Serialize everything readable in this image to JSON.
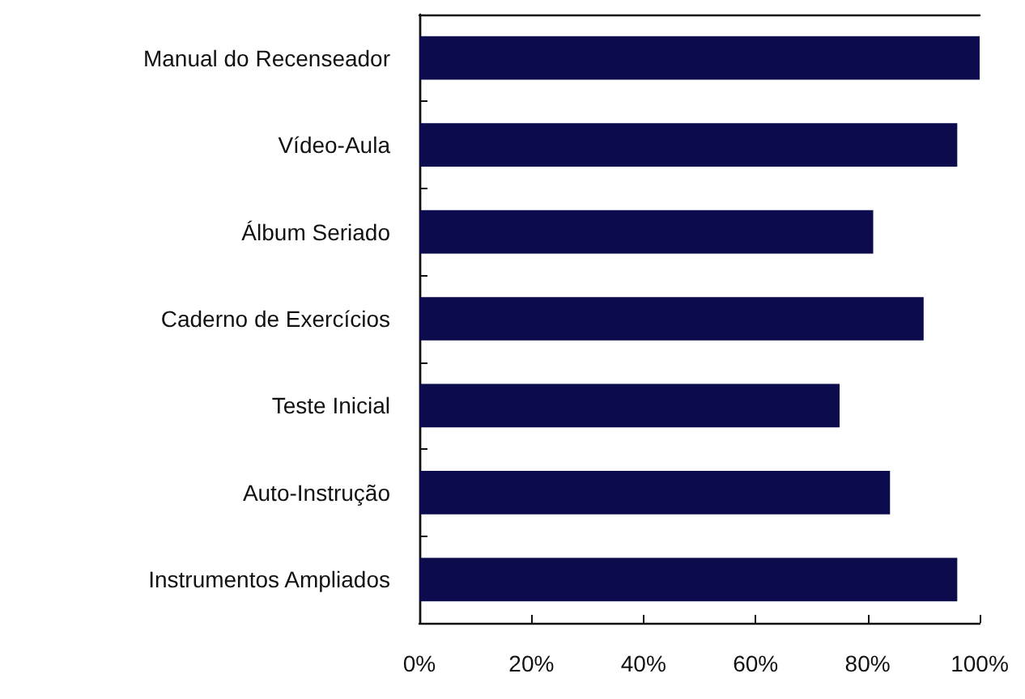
{
  "chart_data": {
    "type": "bar",
    "orientation": "horizontal",
    "categories": [
      "Manual do Recenseador",
      "Vídeo-Aula",
      "Álbum Seriado",
      "Caderno de Exercícios",
      "Teste Inicial",
      "Auto-Instrução",
      "Instrumentos Ampliados"
    ],
    "values": [
      100,
      96,
      81,
      90,
      75,
      84,
      96
    ],
    "color": "#0b0b4d",
    "xlim": [
      0,
      100
    ],
    "xticks": [
      {
        "value": 0,
        "label": "0%"
      },
      {
        "value": 20,
        "label": "20%"
      },
      {
        "value": 40,
        "label": "40%"
      },
      {
        "value": 60,
        "label": "60%"
      },
      {
        "value": 80,
        "label": "80%"
      },
      {
        "value": 100,
        "label": "100%"
      }
    ],
    "grid": false
  }
}
